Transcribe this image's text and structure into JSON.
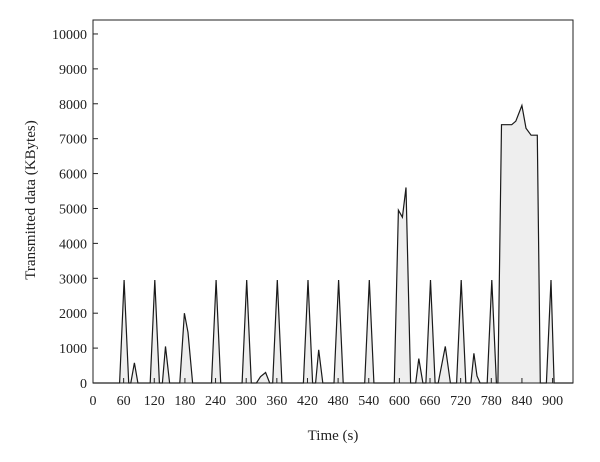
{
  "chart_data": {
    "type": "area",
    "xlabel": "Time (s)",
    "ylabel": "Transmitted data (KBytes)",
    "xlim": [
      0,
      940
    ],
    "ylim": [
      0,
      10400
    ],
    "xticks": [
      0,
      60,
      120,
      180,
      240,
      300,
      360,
      420,
      480,
      540,
      600,
      660,
      720,
      780,
      840,
      900
    ],
    "yticks": [
      0,
      1000,
      2000,
      3000,
      4000,
      5000,
      6000,
      7000,
      8000,
      9000,
      10000
    ],
    "grid": false,
    "legend": "none",
    "line_color": "#1a1a1a",
    "fill_color": "#eeeeee",
    "series": [
      {
        "points": [
          [
            0,
            0
          ],
          [
            52,
            0
          ],
          [
            61,
            2950
          ],
          [
            70,
            0
          ],
          [
            74,
            0
          ],
          [
            81,
            580
          ],
          [
            88,
            0
          ],
          [
            112,
            0
          ],
          [
            121,
            2950
          ],
          [
            130,
            0
          ],
          [
            136,
            0
          ],
          [
            142,
            1050
          ],
          [
            150,
            0
          ],
          [
            170,
            0
          ],
          [
            179,
            2000
          ],
          [
            186,
            1450
          ],
          [
            195,
            0
          ],
          [
            232,
            0
          ],
          [
            241,
            2950
          ],
          [
            250,
            0
          ],
          [
            292,
            0
          ],
          [
            301,
            2950
          ],
          [
            310,
            0
          ],
          [
            320,
            0
          ],
          [
            328,
            180
          ],
          [
            338,
            300
          ],
          [
            346,
            0
          ],
          [
            352,
            0
          ],
          [
            361,
            2950
          ],
          [
            370,
            0
          ],
          [
            412,
            0
          ],
          [
            421,
            2950
          ],
          [
            430,
            0
          ],
          [
            436,
            0
          ],
          [
            442,
            950
          ],
          [
            450,
            0
          ],
          [
            472,
            0
          ],
          [
            481,
            2950
          ],
          [
            490,
            0
          ],
          [
            532,
            0
          ],
          [
            541,
            2950
          ],
          [
            550,
            0
          ],
          [
            590,
            0
          ],
          [
            598,
            4950
          ],
          [
            606,
            4750
          ],
          [
            613,
            5600
          ],
          [
            622,
            0
          ],
          [
            632,
            0
          ],
          [
            638,
            700
          ],
          [
            646,
            0
          ],
          [
            652,
            0
          ],
          [
            661,
            2950
          ],
          [
            670,
            0
          ],
          [
            676,
            0
          ],
          [
            690,
            1050
          ],
          [
            700,
            0
          ],
          [
            712,
            0
          ],
          [
            721,
            2950
          ],
          [
            730,
            0
          ],
          [
            740,
            0
          ],
          [
            746,
            850
          ],
          [
            752,
            200
          ],
          [
            758,
            0
          ],
          [
            772,
            0
          ],
          [
            781,
            2950
          ],
          [
            790,
            0
          ],
          [
            793,
            0
          ],
          [
            800,
            7400
          ],
          [
            820,
            7400
          ],
          [
            828,
            7500
          ],
          [
            840,
            7950
          ],
          [
            848,
            7300
          ],
          [
            858,
            7100
          ],
          [
            870,
            7100
          ],
          [
            876,
            0
          ],
          [
            888,
            0
          ],
          [
            897,
            2950
          ],
          [
            903,
            0
          ],
          [
            940,
            0
          ]
        ]
      }
    ]
  }
}
